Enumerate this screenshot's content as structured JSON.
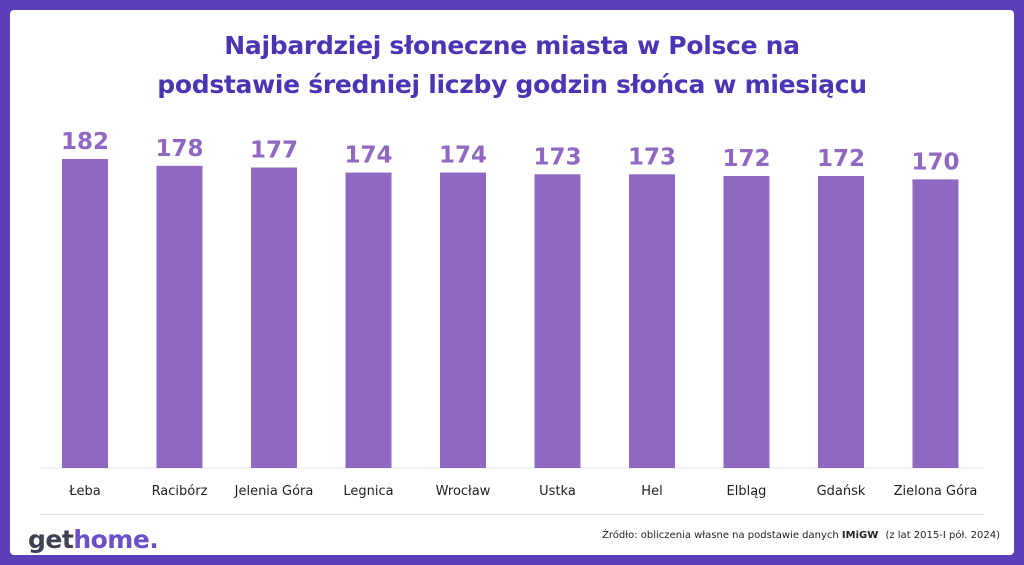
{
  "chart_data": {
    "type": "bar",
    "title_line1": "Najbardziej słoneczne miasta w Polsce na",
    "title_line2": "podstawie średniej liczby godzin słońca w miesiącu",
    "categories": [
      "Łeba",
      "Racibórz",
      "Jelenia Góra",
      "Legnica",
      "Wrocław",
      "Ustka",
      "Hel",
      "Elbląg",
      "Gdańsk",
      "Zielona Góra"
    ],
    "values": [
      182,
      178,
      177,
      174,
      174,
      173,
      173,
      172,
      172,
      170
    ],
    "xlabel": "",
    "ylabel": "",
    "ylim": [
      0,
      182
    ],
    "grid": false,
    "bar_color": "#8f68c2",
    "value_label_color": "#8f68c2"
  },
  "footer": {
    "logo_part1": "get",
    "logo_part2": "home.",
    "source_prefix": "Źródło: obliczenia własne na podstawie danych",
    "source_bold": "IMiGW",
    "source_suffix": "(z lat 2015-I pół. 2024)"
  },
  "colors": {
    "border": "#5b3fb9",
    "title": "#4b35b5",
    "bar": "#8f68c2"
  }
}
